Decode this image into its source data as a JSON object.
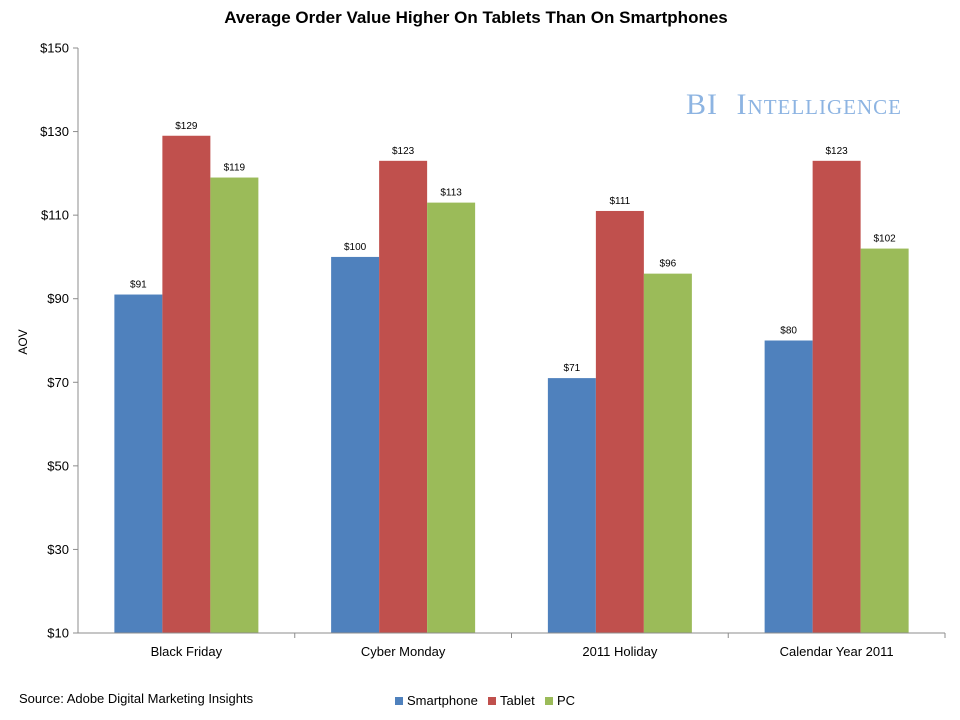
{
  "colors": {
    "Smartphone": "#4f81bd",
    "Tablet": "#c0504d",
    "PC": "#9bbb59",
    "axis": "#8c8c8c",
    "brand": "#8db4e2"
  },
  "brand": {
    "big_b": "BI",
    "intelligence": "Intelligence"
  },
  "source": "Source: Adobe Digital Marketing Insights",
  "chart_data": {
    "type": "bar",
    "title": "Average Order Value Higher On Tablets Than On Smartphones",
    "xlabel": "",
    "ylabel": "AOV",
    "ylim": [
      10,
      150
    ],
    "yticks": [
      10,
      30,
      50,
      70,
      90,
      110,
      130,
      150
    ],
    "ytick_labels": [
      "$10",
      "$30",
      "$50",
      "$70",
      "$90",
      "$110",
      "$130",
      "$150"
    ],
    "grid": false,
    "legend_position": "bottom-center",
    "categories": [
      "Black Friday",
      "Cyber Monday",
      "2011 Holiday",
      "Calendar Year 2011"
    ],
    "series": [
      {
        "name": "Smartphone",
        "values": [
          91,
          100,
          71,
          80
        ],
        "labels": [
          "$91",
          "$100",
          "$71",
          "$80"
        ]
      },
      {
        "name": "Tablet",
        "values": [
          129,
          123,
          111,
          123
        ],
        "labels": [
          "$129",
          "$123",
          "$111",
          "$123"
        ]
      },
      {
        "name": "PC",
        "values": [
          119,
          113,
          96,
          102
        ],
        "labels": [
          "$119",
          "$113",
          "$96",
          "$102"
        ]
      }
    ]
  }
}
